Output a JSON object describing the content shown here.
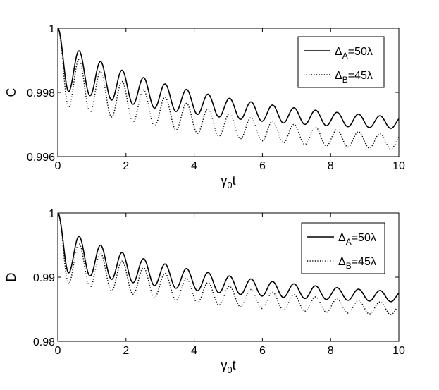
{
  "chart_data": [
    {
      "type": "line",
      "xlabel": "γ",
      "xlabel_sub": "0",
      "xlabel_suffix": "t",
      "ylabel": "C",
      "xlim": [
        0,
        10
      ],
      "ylim": [
        0.996,
        1
      ],
      "xticks": [
        "0",
        "2",
        "4",
        "6",
        "8",
        "10"
      ],
      "yticks": [
        "0.996",
        "0.998",
        "1"
      ],
      "legend_position": "top-right",
      "series": [
        {
          "name_main": "Δ",
          "name_sub": "A",
          "name_rest": "=50λ",
          "style": "solid",
          "color": "#000000",
          "start": 1.0,
          "first_min": 0.998,
          "first_max": 0.9998,
          "trend_end": 0.99705,
          "amplitude_end": 0.00018,
          "period": 0.63
        },
        {
          "name_main": "Δ",
          "name_sub": "B",
          "name_rest": "=45λ",
          "style": "dotted",
          "color": "#000000",
          "start": 1.0,
          "first_min": 0.9975,
          "first_max": 0.9996,
          "trend_end": 0.99645,
          "amplitude_end": 0.00022,
          "period": 0.63
        }
      ]
    },
    {
      "type": "line",
      "xlabel": "γ",
      "xlabel_sub": "0",
      "xlabel_suffix": "t",
      "ylabel": "D",
      "xlim": [
        0,
        10
      ],
      "ylim": [
        0.98,
        1
      ],
      "xticks": [
        "0",
        "2",
        "4",
        "6",
        "8",
        "10"
      ],
      "yticks": [
        "0.98",
        "0.99",
        "1"
      ],
      "legend_position": "top-right",
      "series": [
        {
          "name_main": "Δ",
          "name_sub": "A",
          "name_rest": "=50λ",
          "style": "solid",
          "color": "#000000",
          "start": 1.0,
          "first_min": 0.9905,
          "first_max": 0.9985,
          "trend_end": 0.98695,
          "amplitude_end": 0.0008,
          "period": 0.63
        },
        {
          "name_main": "Δ",
          "name_sub": "B",
          "name_rest": "=45λ",
          "style": "dotted",
          "color": "#000000",
          "start": 1.0,
          "first_min": 0.9888,
          "first_max": 0.9975,
          "trend_end": 0.98505,
          "amplitude_end": 0.0009,
          "period": 0.63
        }
      ]
    }
  ]
}
